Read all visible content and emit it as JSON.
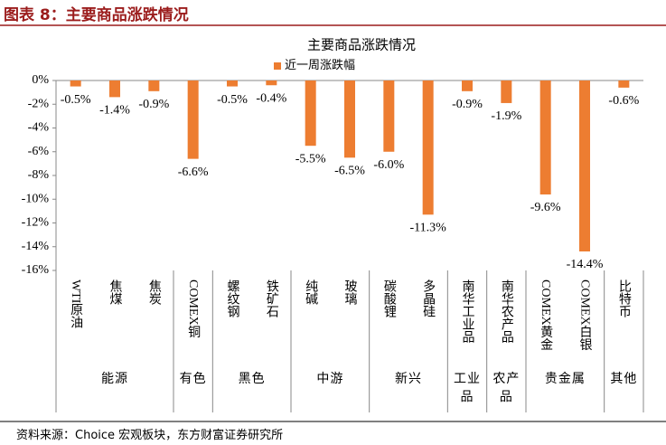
{
  "header": "图表 8：主要商品涨跌情况",
  "source": "资料来源：Choice 宏观板块，东方财富证券研究所",
  "chart_data": {
    "type": "bar",
    "title": "主要商品涨跌情况",
    "series_name": "近一周涨跌幅",
    "color": "#ed7d31",
    "ylim": [
      -16,
      0
    ],
    "yticks": [
      {
        "value": 0,
        "label": "0%"
      },
      {
        "value": -2,
        "label": "-2%"
      },
      {
        "value": -4,
        "label": "-4%"
      },
      {
        "value": -6,
        "label": "-6%"
      },
      {
        "value": -8,
        "label": "-8%"
      },
      {
        "value": -10,
        "label": "-10%"
      },
      {
        "value": -12,
        "label": "-12%"
      },
      {
        "value": -14,
        "label": "-14%"
      },
      {
        "value": -16,
        "label": "-16%"
      }
    ],
    "groups": [
      {
        "name": "能源",
        "categories": [
          "WTI原油",
          "焦煤",
          "焦炭"
        ],
        "values": [
          -0.5,
          -1.4,
          -0.9
        ],
        "value_labels": [
          "-0.5%",
          "-1.4%",
          "-0.9%"
        ]
      },
      {
        "name": "有色",
        "categories": [
          "COMEX铜"
        ],
        "values": [
          -6.6
        ],
        "value_labels": [
          "-6.6%"
        ]
      },
      {
        "name": "黑色",
        "categories": [
          "螺纹钢",
          "铁矿石"
        ],
        "values": [
          -0.5,
          -0.4
        ],
        "value_labels": [
          "-0.5%",
          "-0.4%"
        ]
      },
      {
        "name": "中游",
        "categories": [
          "纯碱",
          "玻璃"
        ],
        "values": [
          -5.5,
          -6.5
        ],
        "value_labels": [
          "-5.5%",
          "-6.5%"
        ]
      },
      {
        "name": "新兴",
        "categories": [
          "碳酸锂",
          "多晶硅"
        ],
        "values": [
          -6.0,
          -11.3
        ],
        "value_labels": [
          "-6.0%",
          "-11.3%"
        ]
      },
      {
        "name": "工业品",
        "categories": [
          "南华工业品"
        ],
        "values": [
          -0.9
        ],
        "value_labels": [
          "-0.9%"
        ]
      },
      {
        "name": "农产品",
        "categories": [
          "南华农产品"
        ],
        "values": [
          -1.9
        ],
        "value_labels": [
          "-1.9%"
        ]
      },
      {
        "name": "贵金属",
        "categories": [
          "COMEX黄金",
          "COMEX白银"
        ],
        "values": [
          -9.6,
          -14.4
        ],
        "value_labels": [
          "-9.6%",
          "-14.4%"
        ]
      },
      {
        "name": "其他",
        "categories": [
          "比特币"
        ],
        "values": [
          -0.6
        ],
        "value_labels": [
          "-0.6%"
        ]
      }
    ]
  }
}
